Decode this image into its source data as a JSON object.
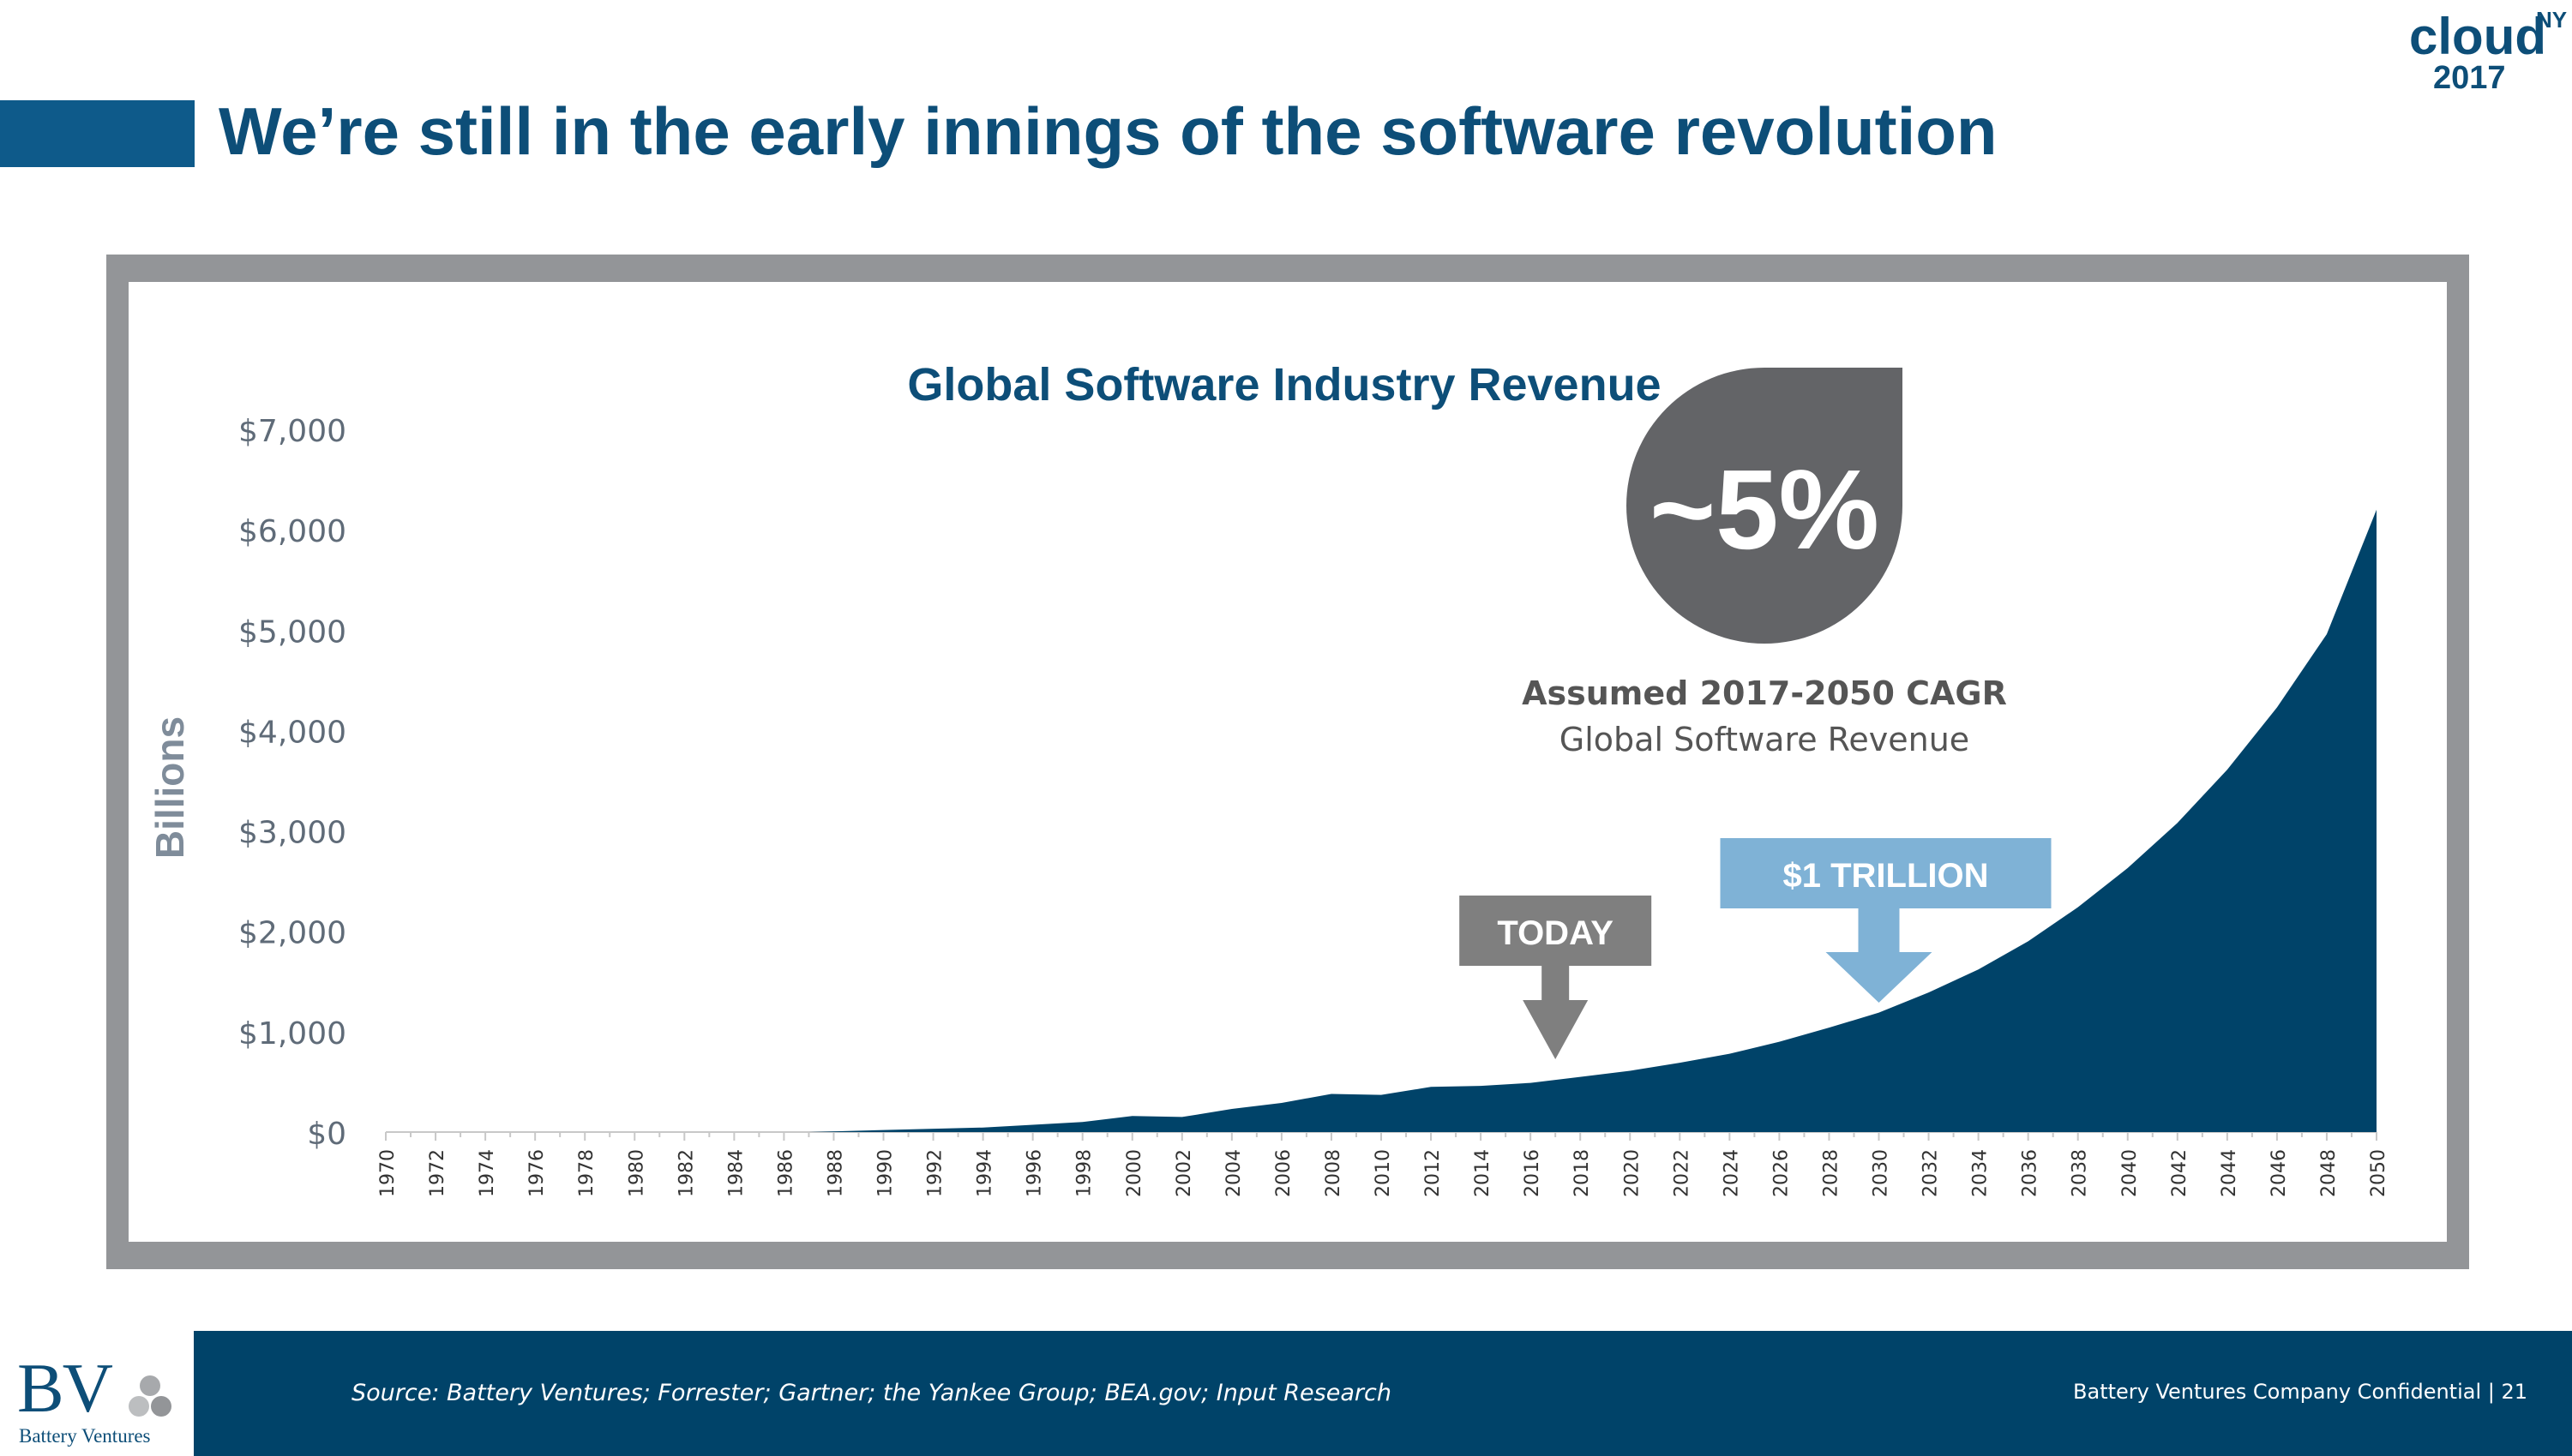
{
  "slide": {
    "title": "We’re still in the early innings of the software revolution",
    "event_logo": {
      "word": "cloud",
      "superscript": "NY",
      "year": "2017"
    }
  },
  "chart_data": {
    "type": "area",
    "title": "Global Software Industry Revenue",
    "ylabel": "Billions",
    "xlabel": "",
    "ylim": [
      0,
      7000
    ],
    "xlim": [
      1970,
      2050
    ],
    "y_ticks": [
      "$0",
      "$1,000",
      "$2,000",
      "$3,000",
      "$4,000",
      "$5,000",
      "$6,000",
      "$7,000"
    ],
    "x_ticks": [
      "1970",
      "1972",
      "1974",
      "1976",
      "1978",
      "1980",
      "1982",
      "1984",
      "1986",
      "1988",
      "1990",
      "1992",
      "1994",
      "1996",
      "1998",
      "2000",
      "2002",
      "2004",
      "2006",
      "2008",
      "2010",
      "2012",
      "2014",
      "2016",
      "2018",
      "2020",
      "2022",
      "2024",
      "2026",
      "2028",
      "2030",
      "2032",
      "2034",
      "2036",
      "2038",
      "2040",
      "2042",
      "2044",
      "2046",
      "2048",
      "2050"
    ],
    "grid": false,
    "colors": {
      "area": "#004369",
      "badge": "#636467",
      "today": "#7f7f7f",
      "trillion": "#7fb2d6"
    },
    "series": [
      {
        "x": [
          1970,
          1987,
          1990,
          1994,
          1998,
          2000,
          2002,
          2004,
          2006,
          2008,
          2010,
          2012,
          2014,
          2016,
          2017,
          2018,
          2020,
          2022,
          2024,
          2026,
          2028,
          2030,
          2032,
          2034,
          2036,
          2038,
          2040,
          2042,
          2044,
          2046,
          2048,
          2050
        ],
        "values": [
          0,
          0,
          20,
          45,
          100,
          160,
          150,
          230,
          290,
          380,
          370,
          450,
          460,
          490,
          520,
          550,
          610,
          690,
          780,
          900,
          1040,
          1190,
          1390,
          1620,
          1900,
          2240,
          2630,
          3080,
          3610,
          4230,
          4960,
          6200
        ]
      }
    ],
    "annotations": {
      "cagr_value": "~5%",
      "cagr_label": "Assumed 2017-2050 CAGR",
      "cagr_sublabel": "Global Software Revenue",
      "today_label": "TODAY",
      "today_year": 2017,
      "trillion_label": "$1 TRILLION",
      "trillion_year": 2030
    }
  },
  "footer": {
    "source": "Source: Battery Ventures; Forrester; Gartner; the Yankee Group; BEA.gov; Input Research",
    "confidential": "Battery Ventures Company Confidential  |  21",
    "logo_letters": "BV",
    "logo_name": "Battery Ventures"
  }
}
